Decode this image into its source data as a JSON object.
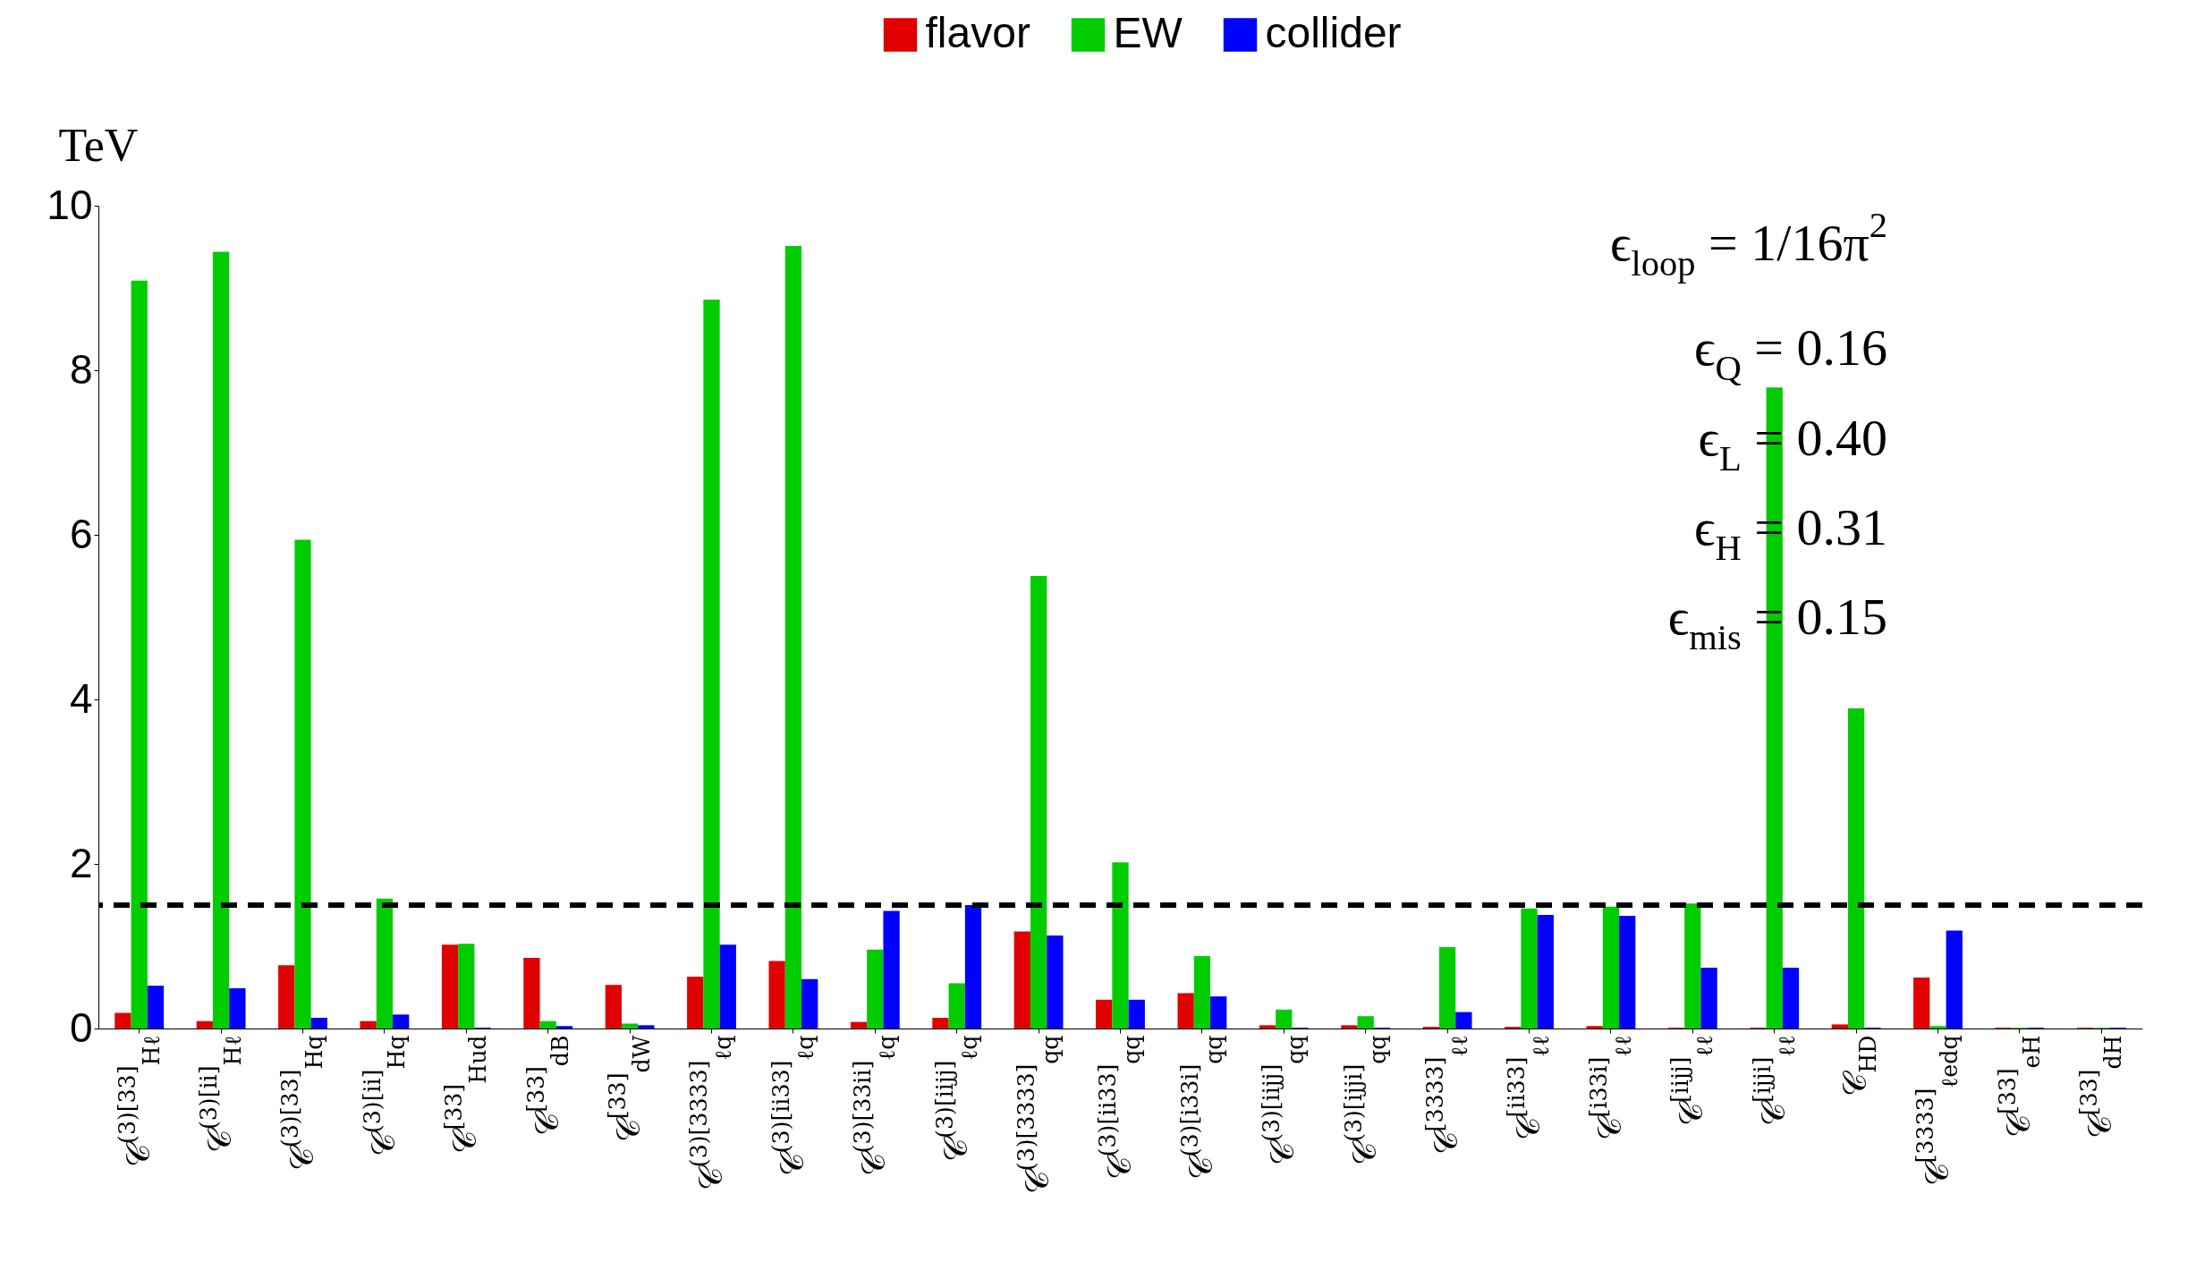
{
  "chart_data": {
    "type": "bar",
    "ylabel": "TeV",
    "categories": [
      "𝒞$^{(3)[33]}$$_{Hℓ}$",
      "𝒞$^{(3)[ii]}$$_{Hℓ}$",
      "𝒞$^{(3)[33]}$$_{Hq}$",
      "𝒞$^{(3)[ii]}$$_{Hq}$",
      "𝒞$^{[33]}$$_{Hud}$",
      "𝒞$^{[33]}$$_{dB}$",
      "𝒞$^{[33]}$$_{dW}$",
      "𝒞$^{(3)[3333]}$$_{ℓq}$",
      "𝒞$^{(3)[ii33]}$$_{ℓq}$",
      "𝒞$^{(3)[33ii]}$$_{ℓq}$",
      "𝒞$^{(3)[iijj]}$$_{ℓq}$",
      "𝒞$^{(3)[3333]}$$_{qq}$",
      "𝒞$^{(3)[ii33]}$$_{qq}$",
      "𝒞$^{(3)[i33i]}$$_{qq}$",
      "𝒞$^{(3)[iijj]}$$_{qq}$",
      "𝒞$^{(3)[ijji]}$$_{qq}$",
      "𝒞$^{[3333]}$$_{ℓℓ}$",
      "𝒞$^{[ii33]}$$_{ℓℓ}$",
      "𝒞$^{[i33i]}$$_{ℓℓ}$",
      "𝒞$^{[iijj]}$$_{ℓℓ}$",
      "𝒞$^{[ijji]}$$_{ℓℓ}$",
      "𝒞$_{HD}$",
      "𝒞$^{[3333]}$$_{ℓedq}$",
      "𝒞$^{[33]}$$_{eH}$",
      "𝒞$^{[33]}$$_{dH}$"
    ],
    "series": [
      {
        "name": "flavor",
        "color": "#e00000",
        "values": [
          0.19,
          0.09,
          0.77,
          0.09,
          1.02,
          0.86,
          0.53,
          0.63,
          0.82,
          0.08,
          0.13,
          1.18,
          0.35,
          0.43,
          0.04,
          0.04,
          0.02,
          0.02,
          0.03,
          0.01,
          0.01,
          0.05,
          0.62,
          0.01,
          0.01
        ]
      },
      {
        "name": "EW",
        "color": "#00cc00",
        "values": [
          9.09,
          9.44,
          5.94,
          1.58,
          1.03,
          0.09,
          0.06,
          8.86,
          9.51,
          0.96,
          0.55,
          5.5,
          2.02,
          0.88,
          0.23,
          0.15,
          0.99,
          1.46,
          1.48,
          1.52,
          7.79,
          3.89,
          0.03,
          0.01,
          0.01
        ]
      },
      {
        "name": "collider",
        "color": "#0000ff",
        "values": [
          0.52,
          0.49,
          0.13,
          0.17,
          0.01,
          0.03,
          0.04,
          1.02,
          0.6,
          1.43,
          1.5,
          1.13,
          0.35,
          0.39,
          0.01,
          0.01,
          0.2,
          1.38,
          1.37,
          0.74,
          0.74,
          0.01,
          1.19,
          0.01,
          0.01
        ]
      }
    ],
    "ylim": [
      0,
      10
    ],
    "yticks": [
      0,
      2,
      4,
      6,
      8,
      10
    ],
    "ref_lines": [
      {
        "axis": "y",
        "value": 1.5,
        "color": "#000000",
        "line_style": "dashed"
      }
    ],
    "annotations": [
      "ϵ$_{loop}$ = 1/16π$^{2}$",
      "ϵ$_{Q}$ = 0.16",
      "ϵ$_{L}$ = 0.40",
      "ϵ$_{H}$ = 0.31",
      "ϵ$_{mis}$ = 0.15"
    ],
    "legend": "top",
    "grid": false
  }
}
